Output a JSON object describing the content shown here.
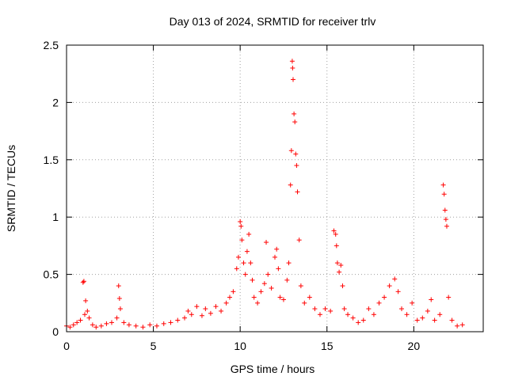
{
  "chart_data": {
    "type": "scatter",
    "title": "Day 013 of 2024, SRMTID for receiver trlv",
    "xlabel": "GPS time / hours",
    "ylabel": "SRMTID / TECUs",
    "xlim": [
      0,
      24
    ],
    "ylim": [
      0,
      2.5
    ],
    "xticks": [
      0,
      5,
      10,
      15,
      20
    ],
    "xtick_labels": [
      "0",
      "5",
      "10",
      "15",
      "20"
    ],
    "yticks": [
      0,
      0.5,
      1,
      1.5,
      2,
      2.5
    ],
    "ytick_labels": [
      "0",
      "0.5",
      "1",
      "1.5",
      "2",
      "2.5"
    ],
    "grid": true,
    "marker": "+",
    "series": [
      {
        "name": "SRMTID",
        "color": "#ff0000",
        "x": [
          0.0,
          0.2,
          0.4,
          0.6,
          0.8,
          0.95,
          1.0,
          1.05,
          1.1,
          1.2,
          1.3,
          1.5,
          1.7,
          2.0,
          2.3,
          2.6,
          2.9,
          3.0,
          3.05,
          3.1,
          3.3,
          3.6,
          4.0,
          4.4,
          4.8,
          5.2,
          5.6,
          6.0,
          6.4,
          6.8,
          7.0,
          7.2,
          7.5,
          7.8,
          8.0,
          8.3,
          8.6,
          8.9,
          9.2,
          9.4,
          9.6,
          9.8,
          9.9,
          10.0,
          10.05,
          10.1,
          10.2,
          10.3,
          10.4,
          10.5,
          10.6,
          10.7,
          10.8,
          11.0,
          11.2,
          11.4,
          11.5,
          11.6,
          11.8,
          12.0,
          12.1,
          12.2,
          12.3,
          12.5,
          12.7,
          12.8,
          12.9,
          12.95,
          13.0,
          13.02,
          13.05,
          13.1,
          13.15,
          13.2,
          13.25,
          13.3,
          13.4,
          13.5,
          13.7,
          14.0,
          14.3,
          14.6,
          14.9,
          15.2,
          15.4,
          15.5,
          15.55,
          15.6,
          15.7,
          15.8,
          15.9,
          16.0,
          16.2,
          16.5,
          16.8,
          17.1,
          17.4,
          17.7,
          18.0,
          18.3,
          18.6,
          18.9,
          19.1,
          19.3,
          19.6,
          19.9,
          20.2,
          20.5,
          20.8,
          21.0,
          21.2,
          21.5,
          21.7,
          21.75,
          21.8,
          21.85,
          21.9,
          22.0,
          22.2,
          22.5,
          22.8
        ],
        "y": [
          0.05,
          0.04,
          0.06,
          0.08,
          0.1,
          0.43,
          0.44,
          0.15,
          0.27,
          0.18,
          0.12,
          0.06,
          0.04,
          0.05,
          0.07,
          0.08,
          0.12,
          0.4,
          0.29,
          0.2,
          0.08,
          0.06,
          0.05,
          0.04,
          0.06,
          0.05,
          0.07,
          0.08,
          0.1,
          0.12,
          0.18,
          0.15,
          0.22,
          0.14,
          0.2,
          0.16,
          0.22,
          0.18,
          0.25,
          0.3,
          0.35,
          0.55,
          0.65,
          0.96,
          0.92,
          0.8,
          0.6,
          0.5,
          0.7,
          0.85,
          0.6,
          0.45,
          0.3,
          0.25,
          0.35,
          0.42,
          0.78,
          0.5,
          0.38,
          0.65,
          0.72,
          0.55,
          0.3,
          0.28,
          0.45,
          0.6,
          1.28,
          1.58,
          2.36,
          2.3,
          2.2,
          1.9,
          1.83,
          1.55,
          1.45,
          1.22,
          0.8,
          0.4,
          0.25,
          0.3,
          0.2,
          0.15,
          0.2,
          0.18,
          0.88,
          0.85,
          0.75,
          0.6,
          0.52,
          0.58,
          0.4,
          0.2,
          0.15,
          0.12,
          0.08,
          0.1,
          0.2,
          0.15,
          0.25,
          0.3,
          0.4,
          0.46,
          0.35,
          0.2,
          0.15,
          0.25,
          0.1,
          0.12,
          0.18,
          0.28,
          0.1,
          0.15,
          1.28,
          1.2,
          1.06,
          0.98,
          0.92,
          0.3,
          0.1,
          0.05,
          0.06
        ]
      }
    ]
  }
}
